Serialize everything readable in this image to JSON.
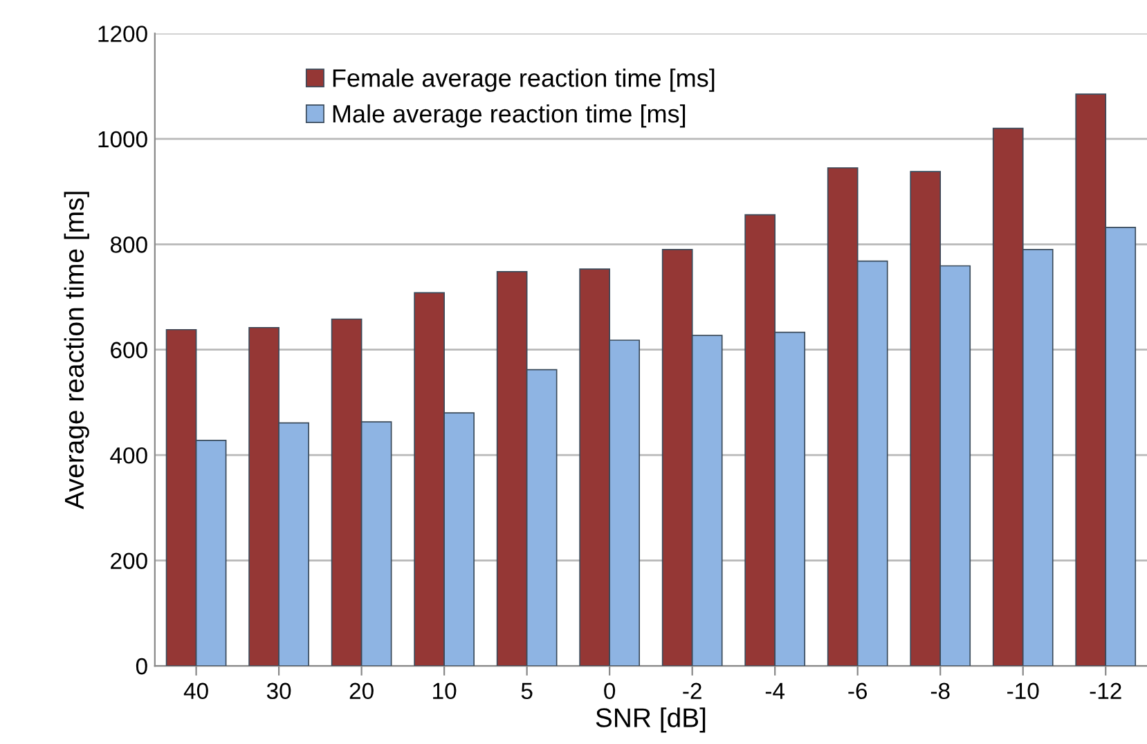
{
  "chart_data": {
    "type": "bar",
    "xlabel": "SNR [dB]",
    "ylabel": "Average reaction time [ms]",
    "categories": [
      "40",
      "30",
      "20",
      "10",
      "5",
      "0",
      "-2",
      "-4",
      "-6",
      "-8",
      "-10",
      "-12"
    ],
    "series": [
      {
        "name": "Female average reaction time [ms]",
        "color": "#953735",
        "values": [
          638,
          642,
          658,
          708,
          748,
          753,
          790,
          856,
          945,
          938,
          1020,
          1085
        ]
      },
      {
        "name": "Male average reaction time [ms]",
        "color": "#8eb4e3",
        "values": [
          428,
          461,
          463,
          480,
          562,
          618,
          627,
          633,
          768,
          759,
          790,
          832
        ]
      }
    ],
    "ylim": [
      0,
      1200
    ],
    "yticks": [
      0,
      200,
      400,
      600,
      800,
      1000,
      1200
    ],
    "grid": "y",
    "legend": "top left"
  }
}
